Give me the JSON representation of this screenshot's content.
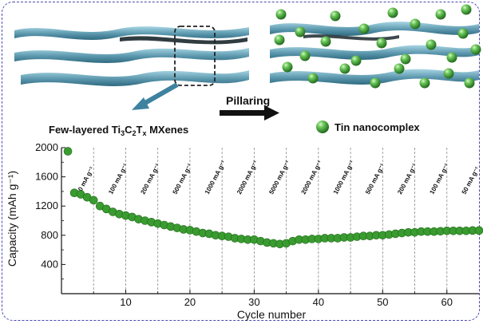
{
  "illustration": {
    "left_caption": "Few-layered Ti3C2Tx MXenes",
    "left_caption_parts": {
      "a": "Few-layered Ti",
      "s1": "3",
      "b": "C",
      "s2": "2",
      "c": "T",
      "s3": "x",
      "d": " MXenes"
    },
    "arrow_label": "Pillaring",
    "legend_label": "Tin nanocomplex",
    "colors": {
      "sheet": "#4f8fa6",
      "sheet_light": "#9fd0df",
      "sphere": "#3aa132",
      "arrow": "#3e82a0"
    }
  },
  "chart_data": {
    "type": "scatter",
    "xlabel": "Cycle number",
    "ylabel": "Capacity (mAh g⁻¹)",
    "xlim": [
      0,
      65
    ],
    "ylim": [
      0,
      2000
    ],
    "xticks": [
      10,
      20,
      30,
      40,
      50,
      60
    ],
    "yticks": [
      400,
      800,
      1200,
      1600,
      2000
    ],
    "marker_color": "#3a9b30",
    "dividers": [
      5,
      10,
      15,
      20,
      25,
      30,
      35,
      40,
      45,
      50,
      55,
      60
    ],
    "segments": [
      {
        "label": "50 mA g⁻¹",
        "from": 0,
        "to": 5
      },
      {
        "label": "100 mA g⁻¹",
        "from": 5,
        "to": 10
      },
      {
        "label": "200 mA g⁻¹",
        "from": 10,
        "to": 15
      },
      {
        "label": "500 mA g⁻¹",
        "from": 15,
        "to": 20
      },
      {
        "label": "1000 mA g⁻¹",
        "from": 20,
        "to": 25
      },
      {
        "label": "2000 mA g⁻¹",
        "from": 25,
        "to": 30
      },
      {
        "label": "5000 mA g⁻¹",
        "from": 30,
        "to": 35
      },
      {
        "label": "2000 mA g⁻¹",
        "from": 35,
        "to": 40
      },
      {
        "label": "1000 mA g⁻¹",
        "from": 40,
        "to": 45
      },
      {
        "label": "500 mA g⁻¹",
        "from": 45,
        "to": 50
      },
      {
        "label": "200 mA g⁻¹",
        "from": 50,
        "to": 55
      },
      {
        "label": "100 mA g⁻¹",
        "from": 55,
        "to": 60
      },
      {
        "label": "50 mA g⁻¹",
        "from": 60,
        "to": 65
      }
    ],
    "x": [
      1,
      2,
      3,
      4,
      5,
      6,
      7,
      8,
      9,
      10,
      11,
      12,
      13,
      14,
      15,
      16,
      17,
      18,
      19,
      20,
      21,
      22,
      23,
      24,
      25,
      26,
      27,
      28,
      29,
      30,
      31,
      32,
      33,
      34,
      35,
      36,
      37,
      38,
      39,
      40,
      41,
      42,
      43,
      44,
      45,
      46,
      47,
      48,
      49,
      50,
      51,
      52,
      53,
      54,
      55,
      56,
      57,
      58,
      59,
      60,
      61,
      62,
      63,
      64,
      65
    ],
    "y": [
      1950,
      1380,
      1360,
      1320,
      1280,
      1200,
      1160,
      1120,
      1090,
      1070,
      1050,
      1020,
      1000,
      980,
      960,
      940,
      920,
      900,
      880,
      870,
      850,
      830,
      820,
      800,
      790,
      780,
      760,
      750,
      740,
      740,
      720,
      700,
      690,
      680,
      690,
      720,
      740,
      740,
      750,
      750,
      760,
      760,
      760,
      770,
      770,
      780,
      790,
      790,
      800,
      800,
      810,
      820,
      830,
      840,
      840,
      850,
      850,
      850,
      855,
      860,
      860,
      860,
      860,
      865,
      865
    ]
  }
}
